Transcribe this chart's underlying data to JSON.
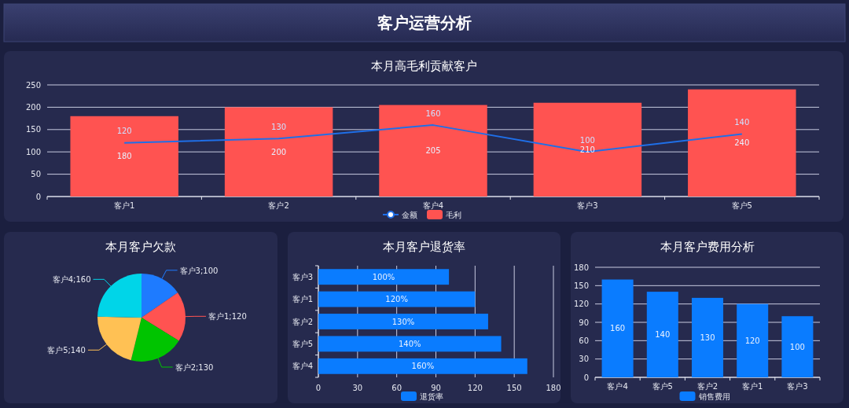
{
  "chart_data": [
    {
      "type": "other",
      "title": "客户运营分析"
    },
    {
      "type": "bar",
      "title": "本月高毛利贡献客户",
      "categories": [
        "客户1",
        "客户2",
        "客户4",
        "客户3",
        "客户5"
      ],
      "ylim": [
        0,
        250
      ],
      "yticks": [
        0,
        50,
        100,
        150,
        200,
        250
      ],
      "grid": "y",
      "legend": "bottom",
      "data_labels": true,
      "series": [
        {
          "name": "金额",
          "type": "line",
          "color": "#1f6fe8",
          "values": [
            120,
            130,
            160,
            100,
            140
          ]
        },
        {
          "name": "毛利",
          "type": "bar",
          "color": "#ff5351",
          "values": [
            180,
            200,
            205,
            210,
            240
          ]
        }
      ]
    },
    {
      "type": "pie",
      "title": "本月客户欠款",
      "categories": [
        null,
        null,
        null,
        null,
        null
      ],
      "values": [
        100,
        120,
        130,
        140,
        160
      ],
      "colors": [
        "#1e7bff",
        "#ff5351",
        "#00c400",
        "#ffc154",
        "#00d5e8"
      ],
      "value_labels": [
        "客户3;100",
        "客户1;120",
        "客户2;130",
        "客户5;140",
        "客户4;160"
      ]
    },
    {
      "type": "bar",
      "title": "本月客户退货率",
      "orientation": "horizontal",
      "categories": [
        "客户3",
        "客户1",
        "客户2",
        "客户5",
        "客户4"
      ],
      "xlim": [
        0,
        180
      ],
      "xticks": [
        0,
        30,
        60,
        90,
        120,
        150,
        180
      ],
      "grid": "x",
      "legend": "bottom",
      "series": [
        {
          "name": "退货率",
          "color": "#0a7cff",
          "values": [
            100,
            120,
            130,
            140,
            160
          ],
          "value_labels": [
            "100%",
            "120%",
            "130%",
            "140%",
            "160%"
          ]
        }
      ]
    },
    {
      "type": "bar",
      "title": "本月客户费用分析",
      "categories": [
        "客户4",
        "客户5",
        "客户2",
        "客户1",
        "客户3"
      ],
      "ylim": [
        0,
        180
      ],
      "yticks": [
        0,
        30,
        60,
        90,
        120,
        150,
        180
      ],
      "grid": "y",
      "legend": "bottom",
      "data_labels": true,
      "series": [
        {
          "name": "销售费用",
          "color": "#0a7cff",
          "values": [
            160,
            140,
            130,
            120,
            100
          ]
        }
      ]
    }
  ]
}
